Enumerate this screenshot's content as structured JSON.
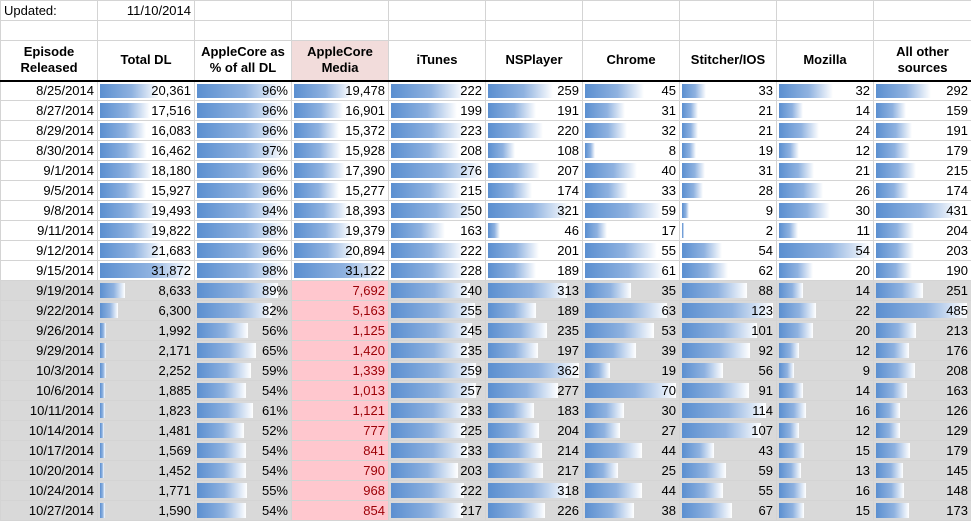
{
  "updated_label": "Updated:",
  "updated_date": "11/10/2014",
  "headers": [
    "Episode Released",
    "Total DL",
    "AppleCore as % of all DL",
    "AppleCore Media",
    "iTunes",
    "NSPlayer",
    "Chrome",
    "Stitcher/IOS",
    "Mozilla",
    "All other sources"
  ],
  "bar_max": [
    31872,
    100,
    31122,
    276,
    362,
    70,
    123,
    54,
    485
  ],
  "rows": [
    {
      "date": "8/25/2014",
      "vals": [
        "20,361",
        "96%",
        "19,478",
        "222",
        "259",
        "45",
        "33",
        "32",
        "292"
      ],
      "n": [
        20361,
        96,
        19478,
        222,
        259,
        45,
        33,
        32,
        292
      ],
      "gray": false
    },
    {
      "date": "8/27/2014",
      "vals": [
        "17,516",
        "96%",
        "16,901",
        "199",
        "191",
        "31",
        "21",
        "14",
        "159"
      ],
      "n": [
        17516,
        96,
        16901,
        199,
        191,
        31,
        21,
        14,
        159
      ],
      "gray": false
    },
    {
      "date": "8/29/2014",
      "vals": [
        "16,083",
        "96%",
        "15,372",
        "223",
        "220",
        "32",
        "21",
        "24",
        "191"
      ],
      "n": [
        16083,
        96,
        15372,
        223,
        220,
        32,
        21,
        24,
        191
      ],
      "gray": false
    },
    {
      "date": "8/30/2014",
      "vals": [
        "16,462",
        "97%",
        "15,928",
        "208",
        "108",
        "8",
        "19",
        "12",
        "179"
      ],
      "n": [
        16462,
        97,
        15928,
        208,
        108,
        8,
        19,
        12,
        179
      ],
      "gray": false
    },
    {
      "date": "9/1/2014",
      "vals": [
        "18,180",
        "96%",
        "17,390",
        "276",
        "207",
        "40",
        "31",
        "21",
        "215"
      ],
      "n": [
        18180,
        96,
        17390,
        276,
        207,
        40,
        31,
        21,
        215
      ],
      "gray": false
    },
    {
      "date": "9/5/2014",
      "vals": [
        "15,927",
        "96%",
        "15,277",
        "215",
        "174",
        "33",
        "28",
        "26",
        "174"
      ],
      "n": [
        15927,
        96,
        15277,
        215,
        174,
        33,
        28,
        26,
        174
      ],
      "gray": false
    },
    {
      "date": "9/8/2014",
      "vals": [
        "19,493",
        "94%",
        "18,393",
        "250",
        "321",
        "59",
        "9",
        "30",
        "431"
      ],
      "n": [
        19493,
        94,
        18393,
        250,
        321,
        59,
        9,
        30,
        431
      ],
      "gray": false
    },
    {
      "date": "9/11/2014",
      "vals": [
        "19,822",
        "98%",
        "19,379",
        "163",
        "46",
        "17",
        "2",
        "11",
        "204"
      ],
      "n": [
        19822,
        98,
        19379,
        163,
        46,
        17,
        2,
        11,
        204
      ],
      "gray": false
    },
    {
      "date": "9/12/2014",
      "vals": [
        "21,683",
        "96%",
        "20,894",
        "222",
        "201",
        "55",
        "54",
        "54",
        "203"
      ],
      "n": [
        21683,
        96,
        20894,
        222,
        201,
        55,
        54,
        54,
        203
      ],
      "gray": false
    },
    {
      "date": "9/15/2014",
      "vals": [
        "31,872",
        "98%",
        "31,122",
        "228",
        "189",
        "61",
        "62",
        "20",
        "190"
      ],
      "n": [
        31872,
        98,
        31122,
        228,
        189,
        61,
        62,
        20,
        190
      ],
      "gray": false
    },
    {
      "date": "9/19/2014",
      "vals": [
        "8,633",
        "89%",
        "7,692",
        "240",
        "313",
        "35",
        "88",
        "14",
        "251"
      ],
      "n": [
        8633,
        89,
        7692,
        240,
        313,
        35,
        88,
        14,
        251
      ],
      "gray": true
    },
    {
      "date": "9/22/2014",
      "vals": [
        "6,300",
        "82%",
        "5,163",
        "255",
        "189",
        "63",
        "123",
        "22",
        "485"
      ],
      "n": [
        6300,
        82,
        5163,
        255,
        189,
        63,
        123,
        22,
        485
      ],
      "gray": true
    },
    {
      "date": "9/26/2014",
      "vals": [
        "1,992",
        "56%",
        "1,125",
        "245",
        "235",
        "53",
        "101",
        "20",
        "213"
      ],
      "n": [
        1992,
        56,
        1125,
        245,
        235,
        53,
        101,
        20,
        213
      ],
      "gray": true
    },
    {
      "date": "9/29/2014",
      "vals": [
        "2,171",
        "65%",
        "1,420",
        "235",
        "197",
        "39",
        "92",
        "12",
        "176"
      ],
      "n": [
        2171,
        65,
        1420,
        235,
        197,
        39,
        92,
        12,
        176
      ],
      "gray": true
    },
    {
      "date": "10/3/2014",
      "vals": [
        "2,252",
        "59%",
        "1,339",
        "259",
        "362",
        "19",
        "56",
        "9",
        "208"
      ],
      "n": [
        2252,
        59,
        1339,
        259,
        362,
        19,
        56,
        9,
        208
      ],
      "gray": true
    },
    {
      "date": "10/6/2014",
      "vals": [
        "1,885",
        "54%",
        "1,013",
        "257",
        "277",
        "70",
        "91",
        "14",
        "163"
      ],
      "n": [
        1885,
        54,
        1013,
        257,
        277,
        70,
        91,
        14,
        163
      ],
      "gray": true
    },
    {
      "date": "10/11/2014",
      "vals": [
        "1,823",
        "61%",
        "1,121",
        "233",
        "183",
        "30",
        "114",
        "16",
        "126"
      ],
      "n": [
        1823,
        61,
        1121,
        233,
        183,
        30,
        114,
        16,
        126
      ],
      "gray": true
    },
    {
      "date": "10/14/2014",
      "vals": [
        "1,481",
        "52%",
        "777",
        "225",
        "204",
        "27",
        "107",
        "12",
        "129"
      ],
      "n": [
        1481,
        52,
        777,
        225,
        204,
        27,
        107,
        12,
        129
      ],
      "gray": true
    },
    {
      "date": "10/17/2014",
      "vals": [
        "1,569",
        "54%",
        "841",
        "233",
        "214",
        "44",
        "43",
        "15",
        "179"
      ],
      "n": [
        1569,
        54,
        841,
        233,
        214,
        44,
        43,
        15,
        179
      ],
      "gray": true
    },
    {
      "date": "10/20/2014",
      "vals": [
        "1,452",
        "54%",
        "790",
        "203",
        "217",
        "25",
        "59",
        "13",
        "145"
      ],
      "n": [
        1452,
        54,
        790,
        203,
        217,
        25,
        59,
        13,
        145
      ],
      "gray": true
    },
    {
      "date": "10/24/2014",
      "vals": [
        "1,771",
        "55%",
        "968",
        "222",
        "318",
        "44",
        "55",
        "16",
        "148"
      ],
      "n": [
        1771,
        55,
        968,
        222,
        318,
        44,
        55,
        16,
        148
      ],
      "gray": true
    },
    {
      "date": "10/27/2014",
      "vals": [
        "1,590",
        "54%",
        "854",
        "217",
        "226",
        "38",
        "67",
        "15",
        "173"
      ],
      "n": [
        1590,
        54,
        854,
        217,
        226,
        38,
        67,
        15,
        173
      ],
      "gray": true
    }
  ]
}
